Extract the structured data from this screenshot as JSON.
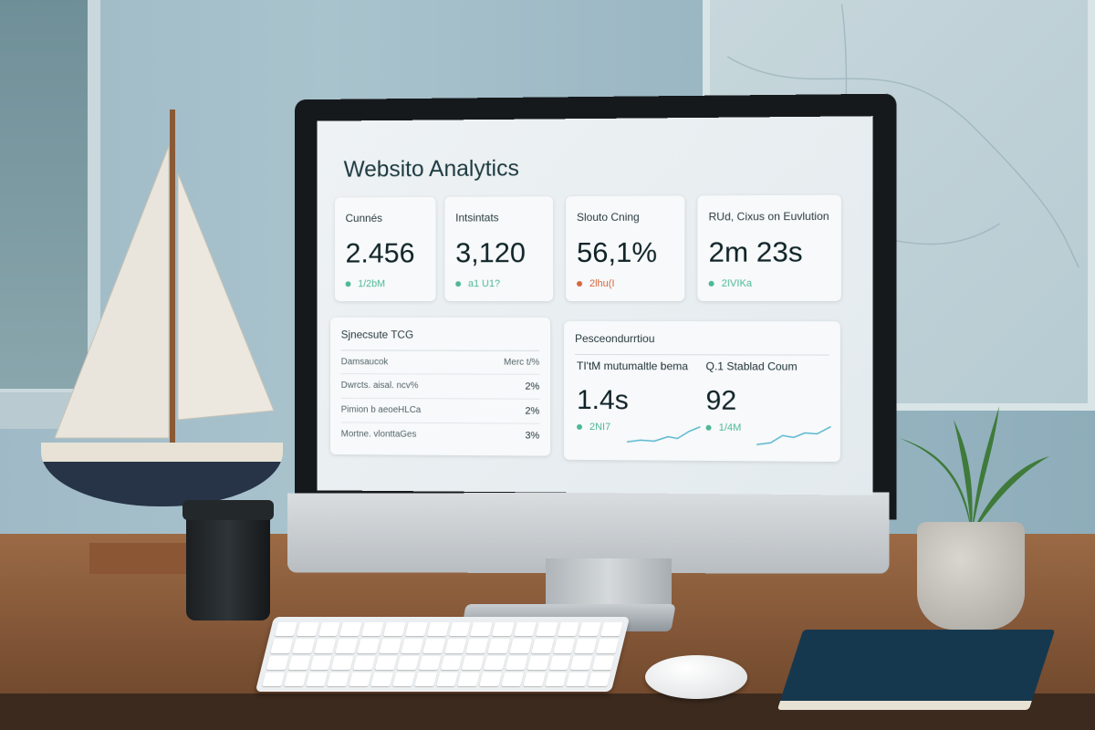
{
  "dashboard": {
    "title": "Websito Analytics",
    "kpis": [
      {
        "label": "Cunnés",
        "value": "2.456",
        "change": "1/2bM",
        "status_color": "#4db896"
      },
      {
        "label": "Intsintats",
        "value": "3,120",
        "change": "a1 U1?",
        "status_color": "#4db896"
      },
      {
        "label": "Slouto Cning",
        "value": "56,1%",
        "change": "2lhu(I",
        "status_color": "#d9663a"
      },
      {
        "label": "RUd, Cixus on Euvlution",
        "value": "2m 23s",
        "change": "2IVIKa",
        "status_color": "#4db896"
      }
    ],
    "table": {
      "title": "Sjnecsute TCG",
      "col1": "Damsaucok",
      "col2": "Merc t/%",
      "rows": [
        {
          "name": "Dwrcts. aisal. ncv%",
          "value": "2%"
        },
        {
          "name": "Pimion b aeoeHLCa",
          "value": "2%"
        },
        {
          "name": "Mortne. vlonttaGes",
          "value": "3%"
        }
      ]
    },
    "performance": {
      "title": "Pesceondurrtiou",
      "metrics": [
        {
          "label": "TI'tM mutumaltle bema",
          "value": "1.4s",
          "change": "2NI7"
        },
        {
          "label": "Q.1 Stablad Coum",
          "value": "92",
          "change": "1/4M"
        }
      ]
    }
  }
}
